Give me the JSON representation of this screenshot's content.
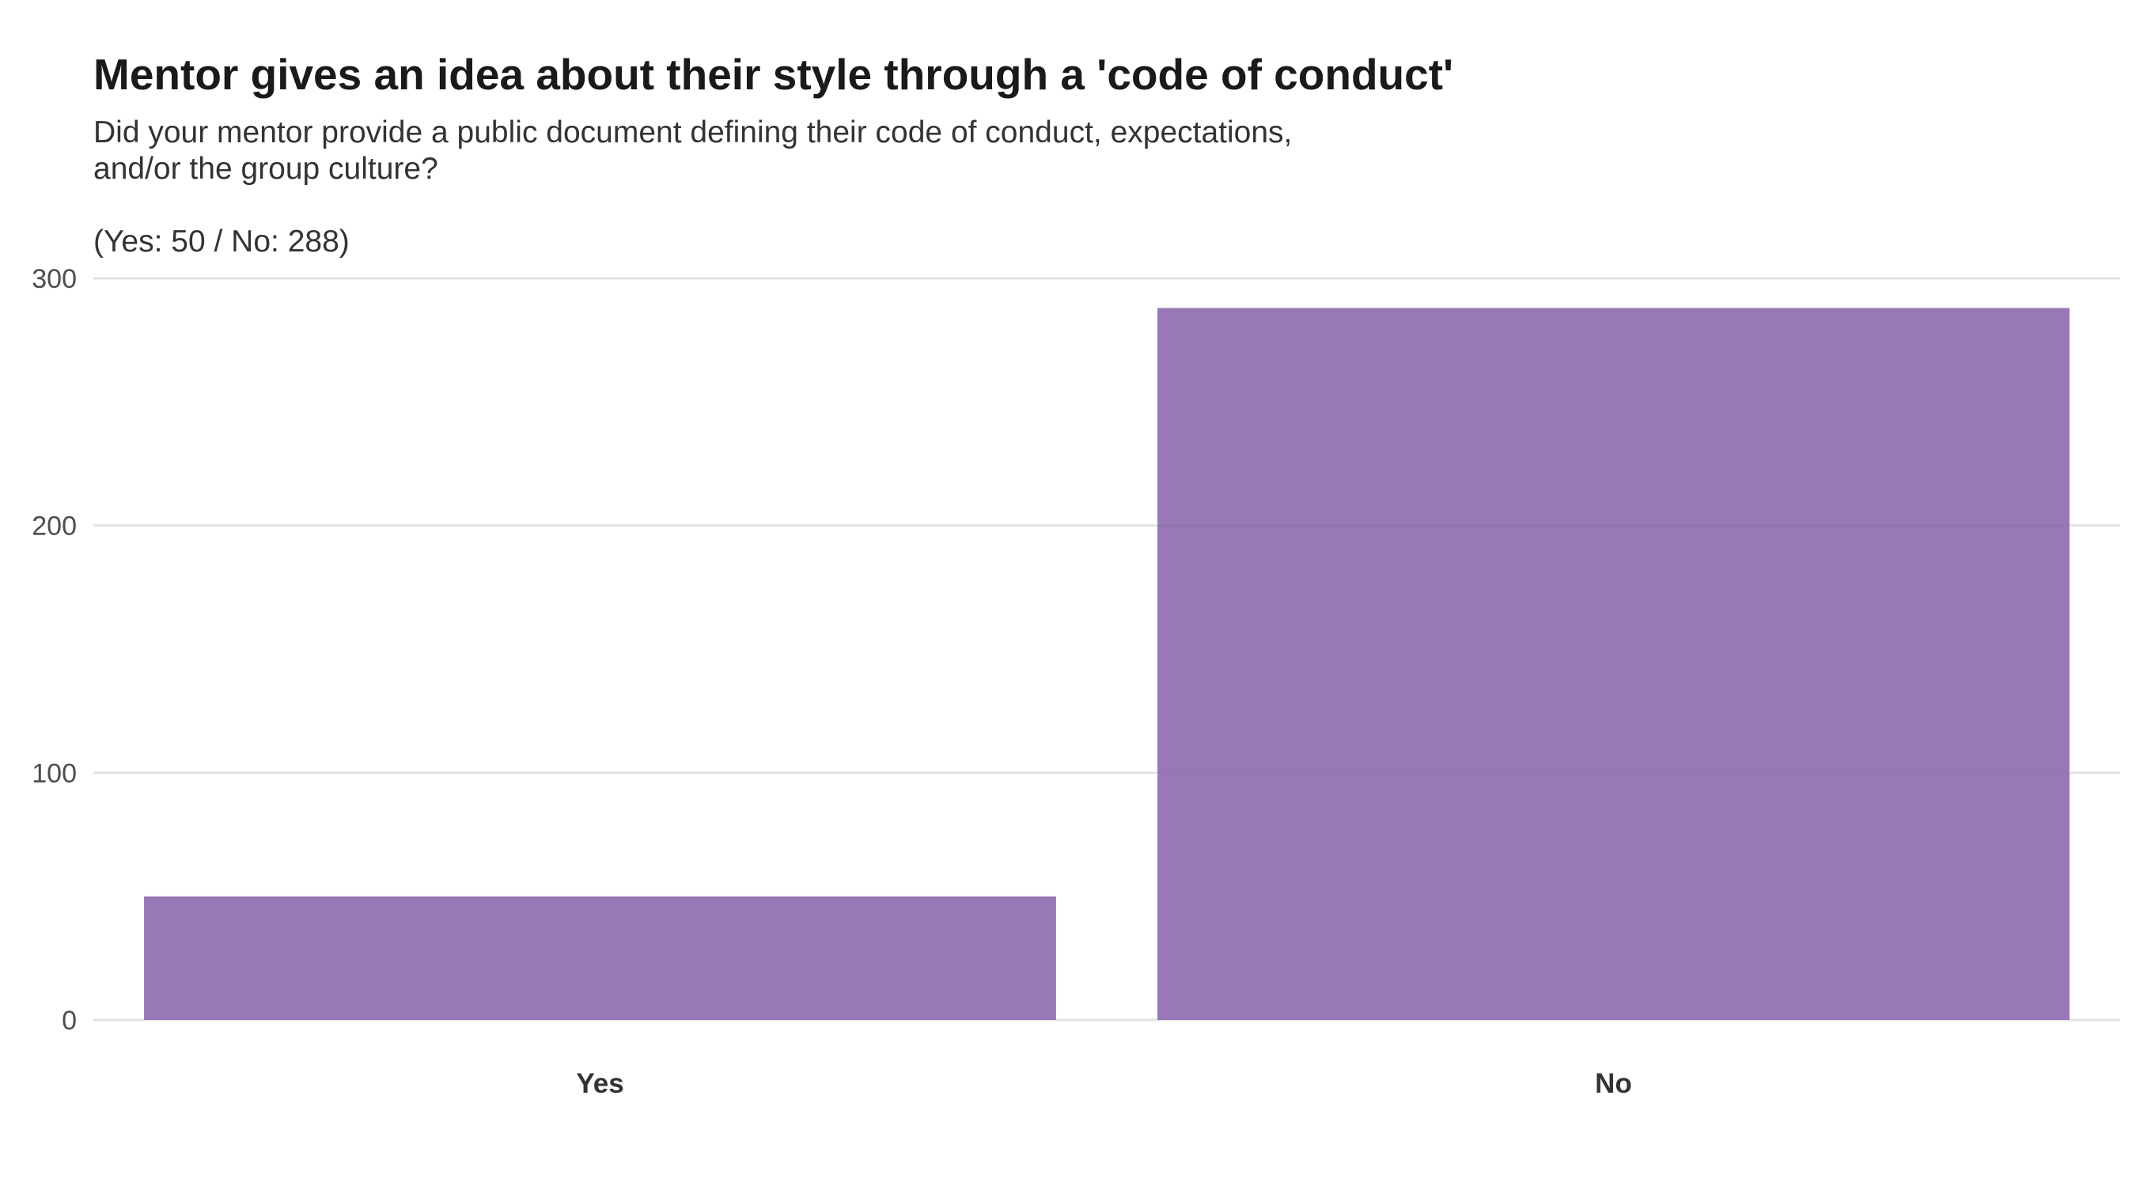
{
  "chart_data": {
    "type": "bar",
    "title": "Mentor gives an idea about their style through a 'code of conduct'",
    "subtitle_lines": [
      "Did your mentor provide a public document defining their code of conduct, expectations,",
      "and/or the group culture?",
      "",
      "(Yes: 50 / No: 288)"
    ],
    "categories": [
      "Yes",
      "No"
    ],
    "values": [
      50,
      288
    ],
    "xlabel": "",
    "ylabel": "",
    "ylim": [
      0,
      300
    ],
    "yticks": [
      0,
      100,
      200,
      300
    ],
    "grid": true,
    "legend": "none",
    "bar_color": "#8662ab"
  }
}
